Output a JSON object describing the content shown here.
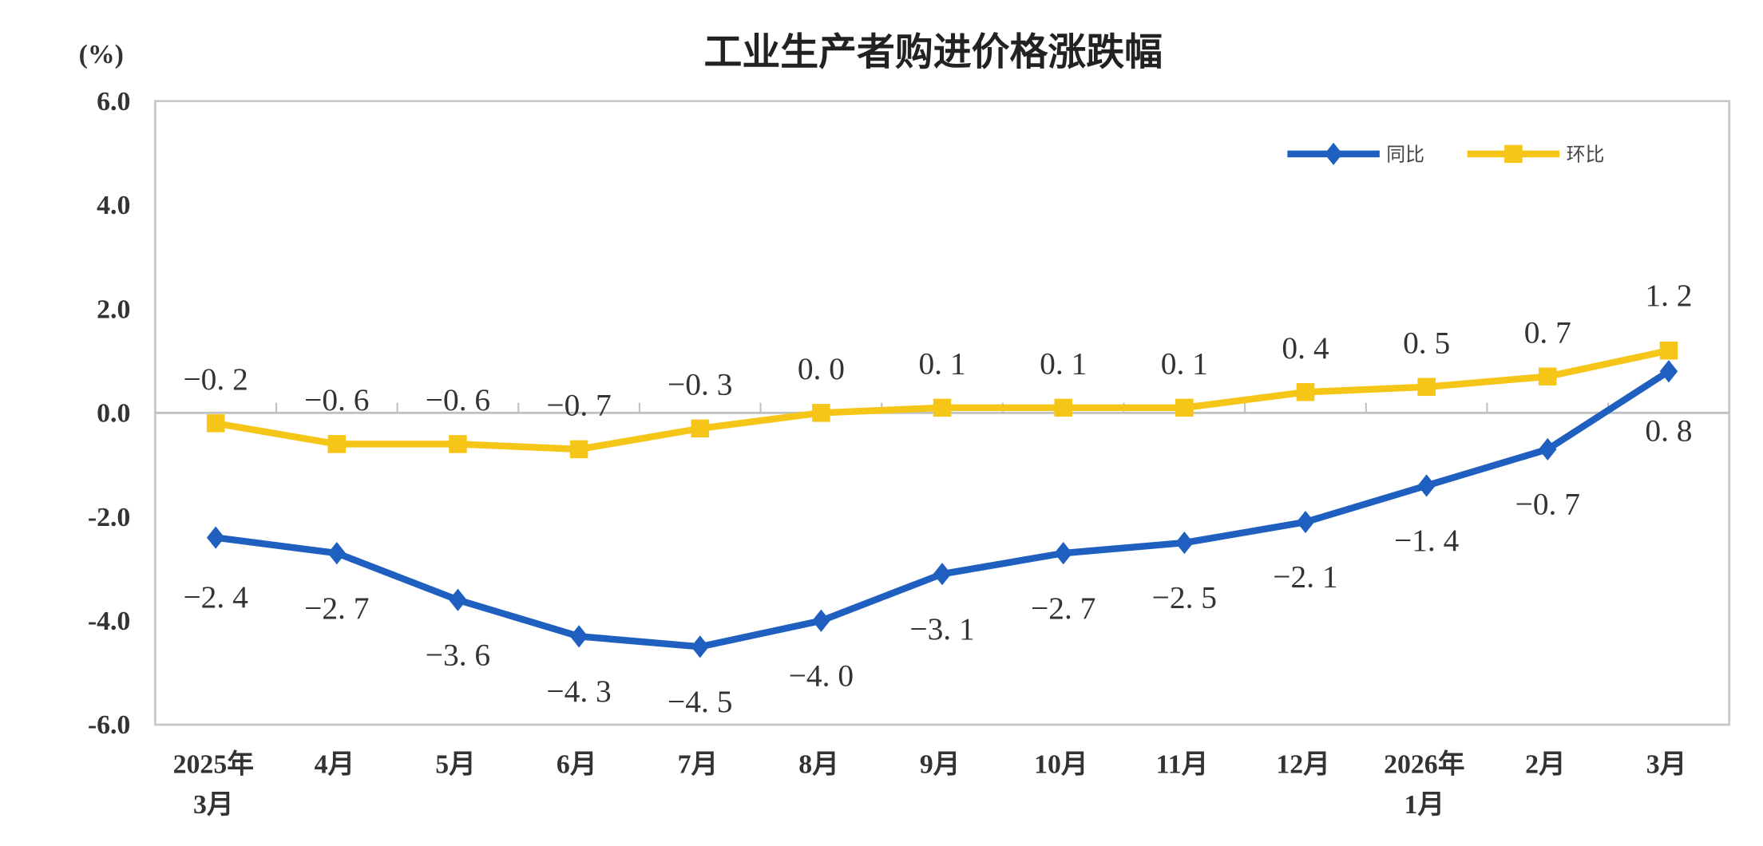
{
  "chart_data": {
    "type": "line",
    "title": "工业生产者购进价格涨跌幅",
    "ylabel": "(%)",
    "ylim": [
      -6.0,
      6.0
    ],
    "yticks": [
      "6.0",
      "4.0",
      "2.0",
      "0.0",
      "-2.0",
      "-4.0",
      "-6.0"
    ],
    "grid": false,
    "legend_position": "top-right",
    "categories": [
      [
        "2025年",
        "3月"
      ],
      [
        "4月"
      ],
      [
        "5月"
      ],
      [
        "6月"
      ],
      [
        "7月"
      ],
      [
        "8月"
      ],
      [
        "9月"
      ],
      [
        "10月"
      ],
      [
        "11月"
      ],
      [
        "12月"
      ],
      [
        "2026年",
        "1月"
      ],
      [
        "2月"
      ],
      [
        "3月"
      ]
    ],
    "series": [
      {
        "name": "同比",
        "color": "#1f5fbf",
        "marker": "diamond",
        "values": [
          -2.4,
          -2.7,
          -3.6,
          -4.3,
          -4.5,
          -4.0,
          -3.1,
          -2.7,
          -2.5,
          -2.1,
          -1.4,
          -0.7,
          0.8
        ]
      },
      {
        "name": "环比",
        "color": "#f5c518",
        "marker": "square",
        "values": [
          -0.2,
          -0.6,
          -0.6,
          -0.7,
          -0.3,
          0.0,
          0.1,
          0.1,
          0.1,
          0.4,
          0.5,
          0.7,
          1.2
        ]
      }
    ]
  }
}
